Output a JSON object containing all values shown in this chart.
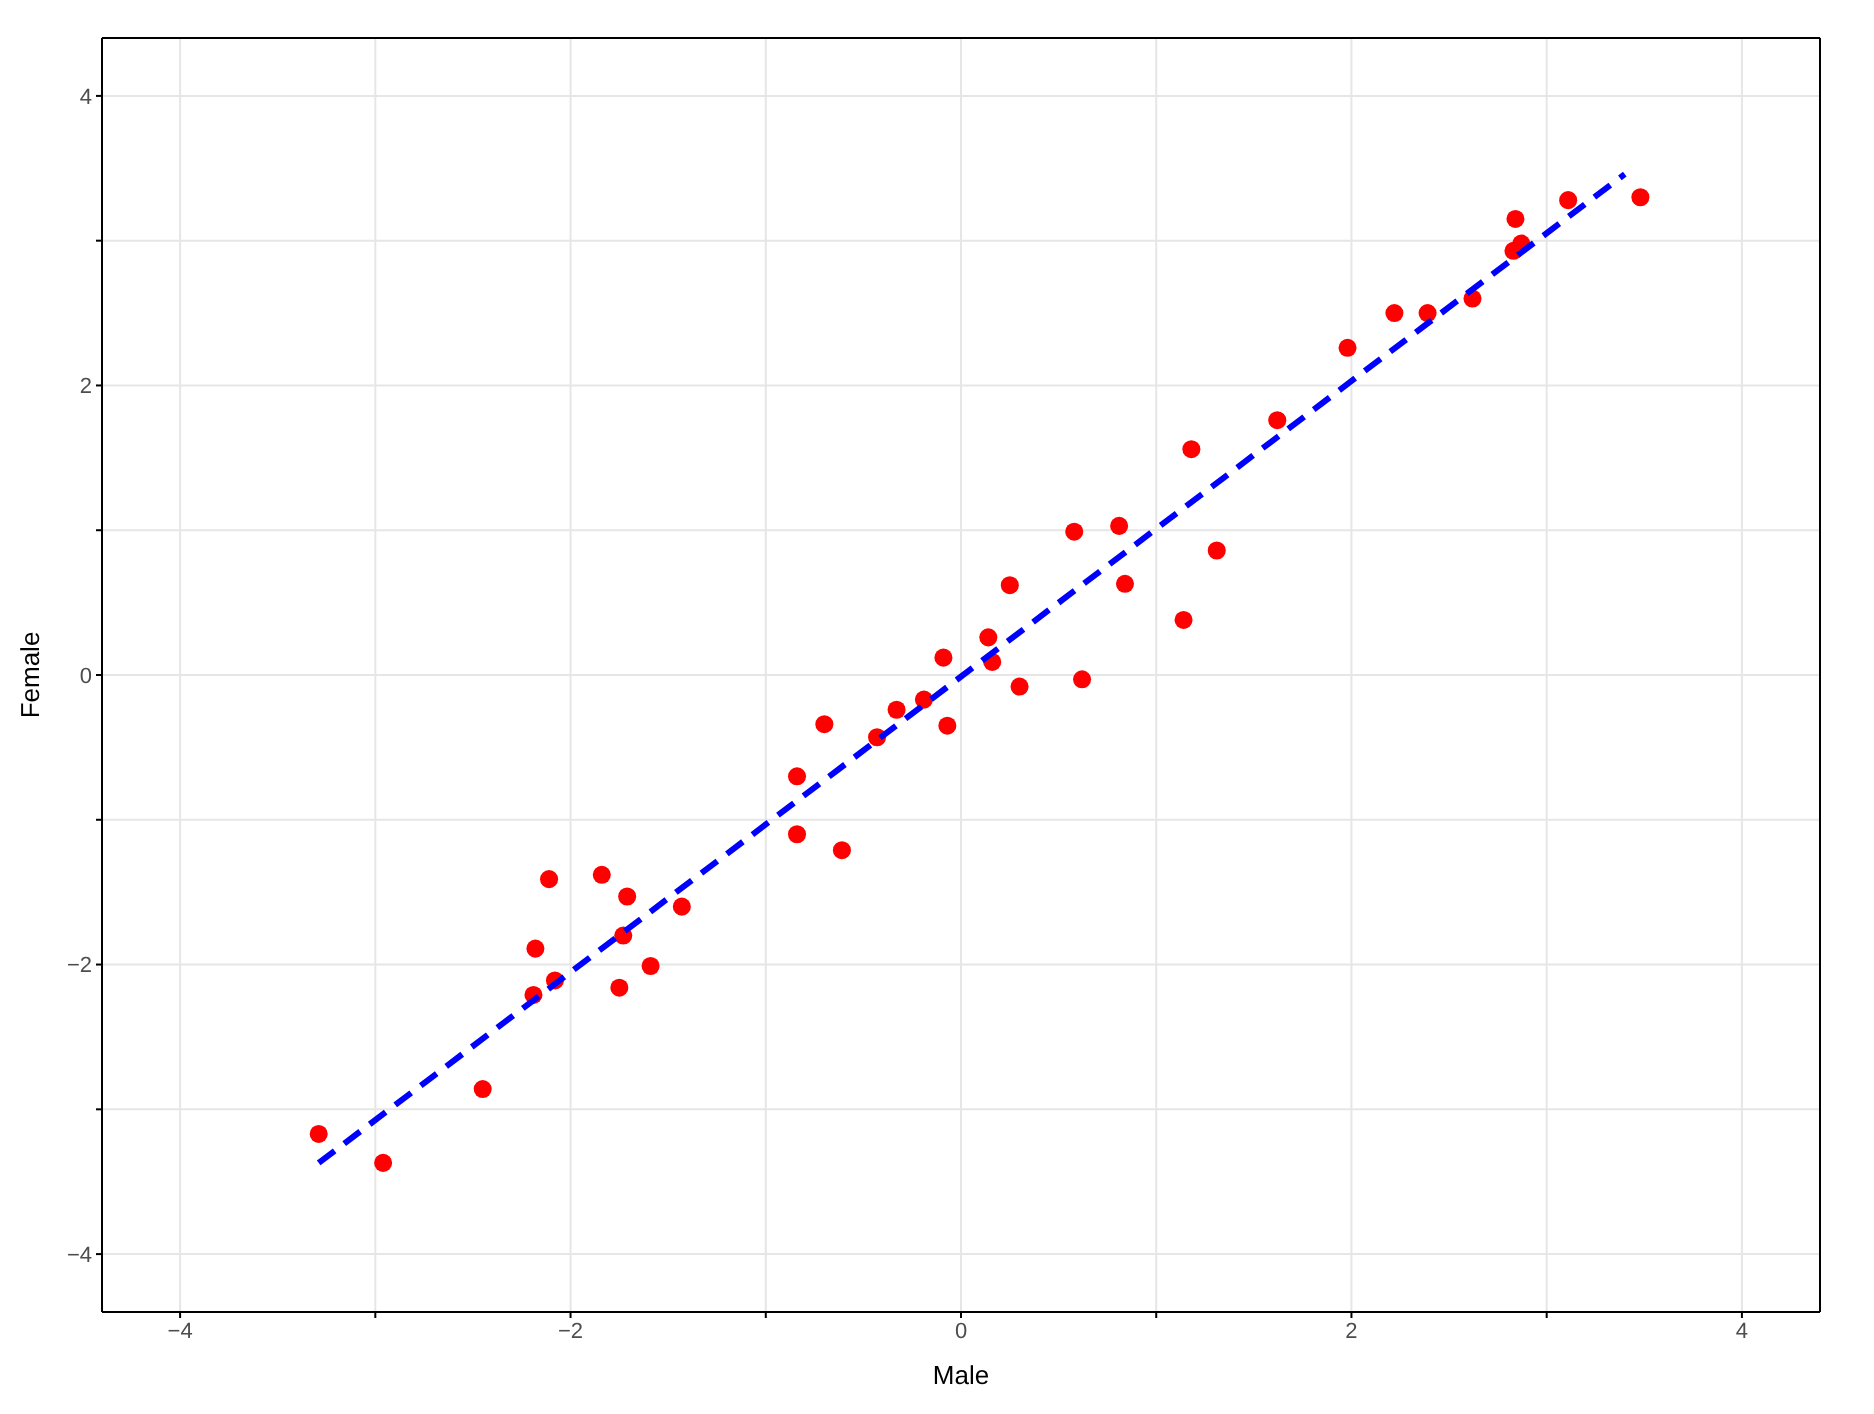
{
  "chart_data": {
    "type": "scatter",
    "xlabel": "Male",
    "ylabel": "Female",
    "xlim": [
      -4.4,
      4.4
    ],
    "ylim": [
      -4.4,
      4.4
    ],
    "xticks": [
      {
        "value": -4,
        "label": "−4"
      },
      {
        "value": -3,
        "label": null
      },
      {
        "value": -2,
        "label": "−2"
      },
      {
        "value": -1,
        "label": null
      },
      0,
      {
        "value": 1,
        "label": null
      },
      2,
      {
        "value": 3,
        "label": null
      },
      4
    ],
    "yticks": [
      {
        "value": -4,
        "label": "−4"
      },
      {
        "value": -3,
        "label": null
      },
      {
        "value": -2,
        "label": "−2"
      },
      {
        "value": -1,
        "label": null
      },
      0,
      {
        "value": 1,
        "label": null
      },
      2,
      {
        "value": 3,
        "label": null
      },
      4
    ],
    "grid": true,
    "legend": false,
    "series": [
      {
        "type": "scatter",
        "color": "#ff0000",
        "marker": "circle",
        "x": [
          -3.29,
          -2.96,
          -2.45,
          -2.19,
          -2.18,
          -2.11,
          -2.08,
          -1.84,
          -1.75,
          -1.73,
          -1.71,
          -1.59,
          -1.43,
          -0.84,
          -0.84,
          -0.7,
          -0.61,
          -0.43,
          -0.33,
          -0.19,
          -0.09,
          -0.07,
          0.14,
          0.16,
          0.25,
          0.3,
          0.58,
          0.62,
          0.81,
          0.84,
          1.14,
          1.18,
          1.31,
          1.62,
          1.98,
          2.22,
          2.39,
          2.62,
          2.83,
          2.84,
          2.87,
          3.11,
          3.48
        ],
        "values": [
          -3.17,
          -3.37,
          -2.86,
          -2.21,
          -1.89,
          -1.41,
          -2.11,
          -1.38,
          -2.16,
          -1.8,
          -1.53,
          -2.01,
          -1.6,
          -0.7,
          -1.1,
          -0.34,
          -1.21,
          -0.43,
          -0.24,
          -0.17,
          0.12,
          -0.35,
          0.26,
          0.09,
          0.62,
          -0.08,
          0.99,
          -0.03,
          1.03,
          0.63,
          0.38,
          1.56,
          0.86,
          1.76,
          2.26,
          2.5,
          2.5,
          2.6,
          2.93,
          3.15,
          2.98,
          3.28,
          3.3
        ]
      },
      {
        "type": "line",
        "color": "#0000ff",
        "marker": "none",
        "line_style": "dashed",
        "x": [
          -3.29,
          3.4
        ],
        "values": [
          -3.37,
          3.46
        ]
      }
    ]
  }
}
